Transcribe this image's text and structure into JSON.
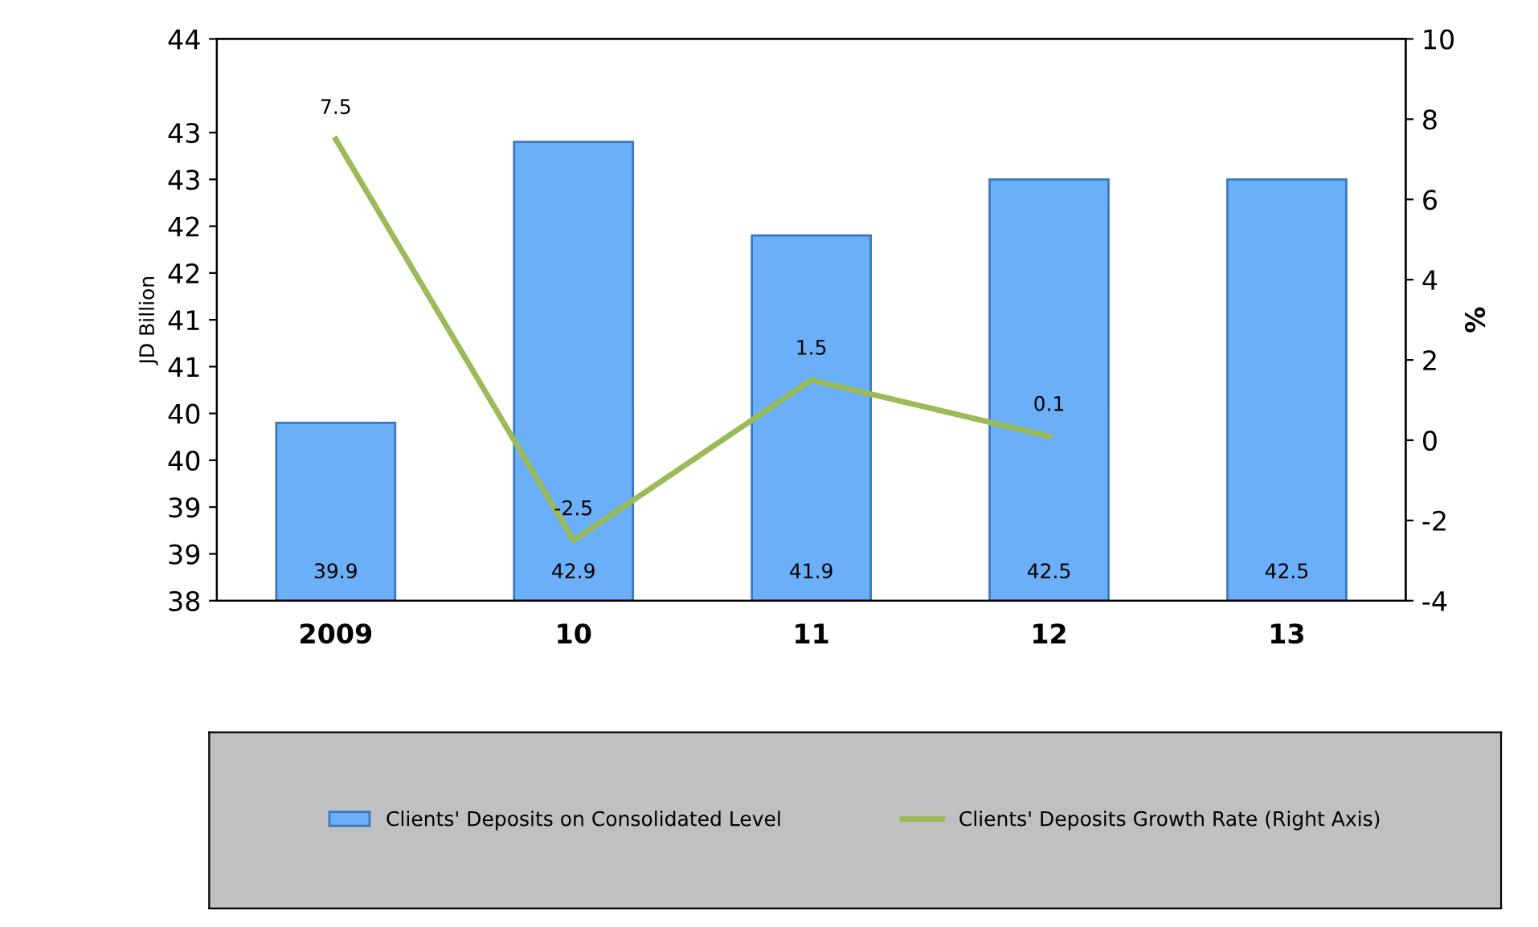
{
  "chart_data": {
    "type": "bar",
    "ylabel": "JD Billion",
    "y2label": "%",
    "categories": [
      "2009",
      "10",
      "11",
      "12",
      "13"
    ],
    "series": [
      {
        "name": "Clients' Deposits on Consolidated Level",
        "color": "#6aaff7",
        "values": [
          39.9,
          42.9,
          41.9,
          42.5,
          42.5
        ]
      },
      {
        "name": "Clients' Deposits Growth Rate (Right Axis)",
        "type": "line",
        "axis": "y2",
        "color": "#9bbb59",
        "values": [
          7.5,
          -2.5,
          1.5,
          0.1,
          null
        ]
      }
    ],
    "ylim": [
      38,
      44
    ],
    "yticks": [
      38,
      {
        "value": 38.5,
        "label": "39"
      },
      39,
      {
        "value": 39.5,
        "label": "40"
      },
      40,
      {
        "value": 40.5,
        "label": "41"
      },
      41,
      {
        "value": 41.5,
        "label": "42"
      },
      42,
      {
        "value": 42.5,
        "label": "43"
      },
      43,
      44
    ],
    "y2lim": [
      -4,
      10
    ],
    "y2ticks": [
      -4,
      -2,
      0,
      2,
      4,
      6,
      8,
      10
    ],
    "data_labels": true,
    "grid": false,
    "legend": "bottom",
    "marker": "none",
    "line_style": "solid"
  }
}
